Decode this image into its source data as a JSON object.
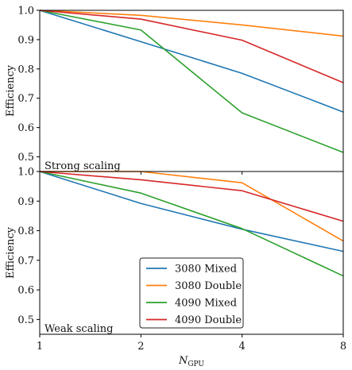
{
  "chart_data": [
    {
      "type": "line",
      "panel_label": "Strong scaling",
      "xlabel": "N",
      "xlabel_sub": "GPU",
      "ylabel": "Efficiency",
      "x": [
        1,
        2,
        4,
        8
      ],
      "x_scale": "log2",
      "x_ticks": [
        "1",
        "2",
        "4",
        "8"
      ],
      "ylim": [
        0.45,
        1.0
      ],
      "y_ticks": [
        "0.5",
        "0.6",
        "0.7",
        "0.8",
        "0.9",
        "1.0"
      ],
      "grid": false,
      "series": [
        {
          "name": "3080 Mixed",
          "color": "#1f77b4",
          "values": [
            1.0,
            0.893,
            0.785,
            0.653
          ]
        },
        {
          "name": "3080 Double",
          "color": "#ff7f0e",
          "values": [
            1.0,
            0.983,
            0.95,
            0.912
          ]
        },
        {
          "name": "4090 Mixed",
          "color": "#2ca02c",
          "values": [
            1.0,
            0.933,
            0.65,
            0.515
          ]
        },
        {
          "name": "4090 Double",
          "color": "#d62728",
          "values": [
            1.0,
            0.97,
            0.898,
            0.753
          ]
        }
      ]
    },
    {
      "type": "line",
      "panel_label": "Weak scaling",
      "xlabel": "N",
      "xlabel_sub": "GPU",
      "ylabel": "Efficiency",
      "x": [
        1,
        2,
        4,
        8
      ],
      "x_scale": "log2",
      "x_ticks": [
        "1",
        "2",
        "4",
        "8"
      ],
      "ylim": [
        0.45,
        1.0
      ],
      "y_ticks": [
        "0.5",
        "0.6",
        "0.7",
        "0.8",
        "0.9",
        "1.0"
      ],
      "grid": false,
      "legend": "lower-center",
      "series": [
        {
          "name": "3080 Mixed",
          "color": "#1f77b4",
          "values": [
            1.0,
            0.892,
            0.805,
            0.73
          ]
        },
        {
          "name": "3080 Double",
          "color": "#ff7f0e",
          "values": [
            1.0,
            1.0,
            0.962,
            0.765
          ]
        },
        {
          "name": "4090 Mixed",
          "color": "#2ca02c",
          "values": [
            1.0,
            0.927,
            0.807,
            0.647
          ]
        },
        {
          "name": "4090 Double",
          "color": "#d62728",
          "values": [
            1.0,
            0.972,
            0.935,
            0.832
          ]
        }
      ]
    }
  ]
}
